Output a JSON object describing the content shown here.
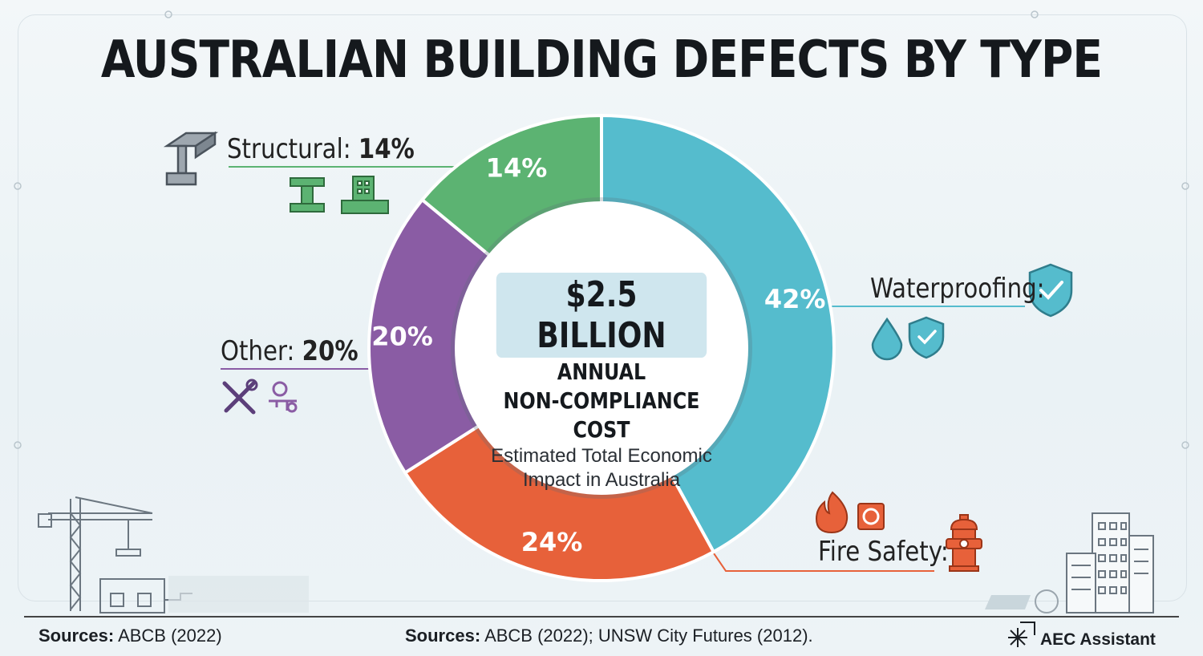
{
  "title": "AUSTRALIAN BUILDING DEFECTS BY TYPE",
  "center": {
    "amount": "$2.5 BILLION",
    "line1": "ANNUAL",
    "line2": "NON-COMPLIANCE COST",
    "sub1": "Estimated Total Economic",
    "sub2": "Impact in Australia"
  },
  "labels": {
    "structural_name": "Structural:",
    "structural_pct": "14%",
    "other_name": "Other:",
    "other_pct": "20%",
    "waterproofing_name": "Waterproofing:",
    "fire_name": "Fire Safety:"
  },
  "sources": {
    "left_bold": "Sources:",
    "left_text": "ABCB (2022)",
    "mid_bold": "Sources:",
    "mid_text": "ABCB (2022); UNSW City Futures (2012)."
  },
  "brand": "AEC Assistant",
  "colors": {
    "waterproofing": "#55bccd",
    "fire_safety": "#e7613a",
    "other": "#8a5ca4",
    "structural": "#5cb372"
  },
  "chart_data": {
    "type": "pie",
    "title": "AUSTRALIAN BUILDING DEFECTS BY TYPE",
    "categories": [
      "Waterproofing",
      "Fire Safety",
      "Other",
      "Structural"
    ],
    "values": [
      42,
      24,
      20,
      14
    ],
    "value_labels": [
      "42%",
      "24%",
      "20%",
      "14%"
    ],
    "unit": "%",
    "start_at": "top, clockwise",
    "legend": "none"
  },
  "icons": [
    "steel-beam-icon",
    "i-beam-icon",
    "building-foundation-icon",
    "wrench-screwdriver-icon",
    "key-icon",
    "shield-check-icon",
    "water-drop-icon",
    "fire-icon",
    "fire-alarm-icon",
    "fire-hydrant-icon",
    "crane-icon",
    "office-building-icon",
    "aec-logo-icon"
  ]
}
